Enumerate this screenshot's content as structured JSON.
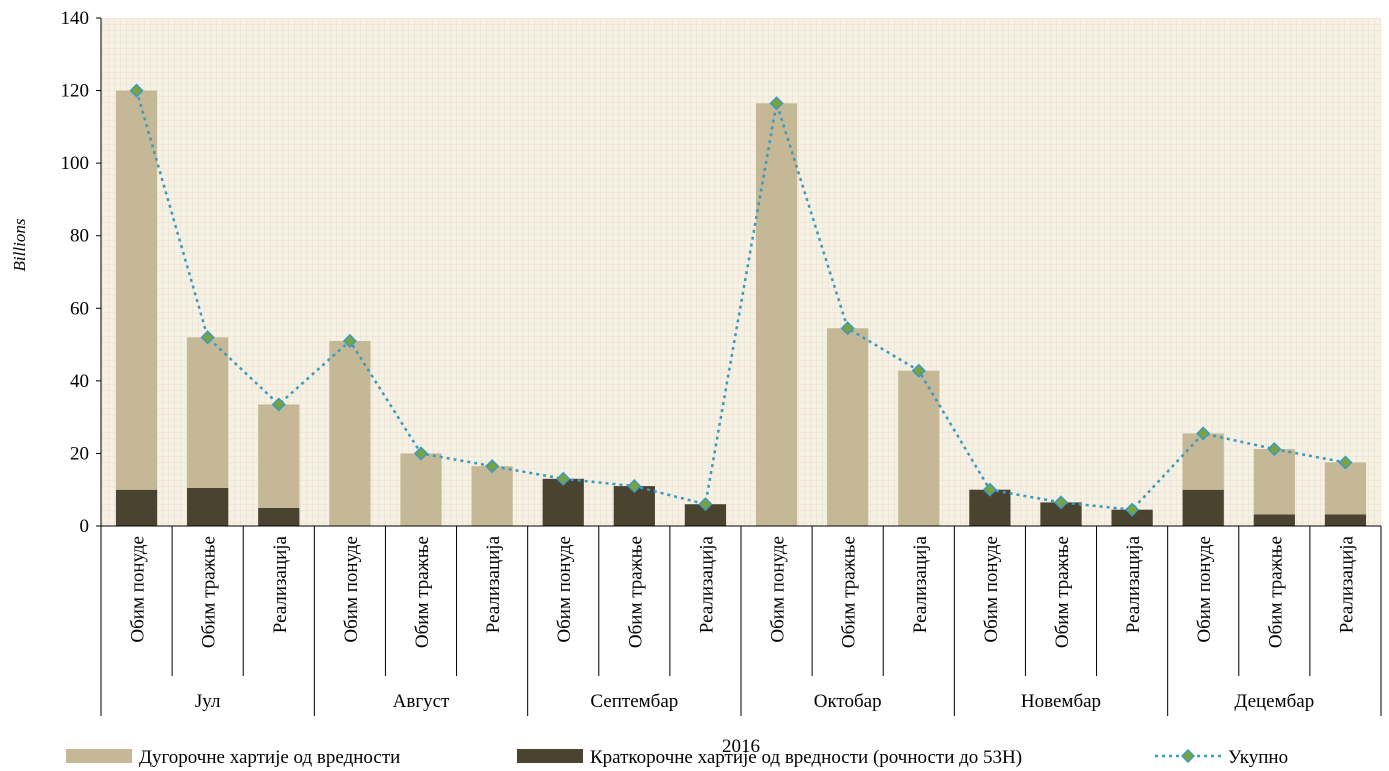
{
  "chart_data": {
    "type": "bar",
    "title": "",
    "ylabel": "Billions",
    "xlabel": "2016",
    "ylim": [
      0,
      140
    ],
    "yticks": [
      0,
      20,
      40,
      60,
      80,
      100,
      120,
      140
    ],
    "grid": true,
    "legend_position": "bottom",
    "groups": [
      "Јул",
      "Август",
      "Септембар",
      "Октобар",
      "Новембар",
      "Децембар"
    ],
    "sub_categories": [
      "Обим понуде",
      "Обим тражње",
      "Реализација"
    ],
    "stacked": true,
    "series": [
      {
        "name": "Краткорочне хартије од вредности (рочности до 53Н)",
        "kind": "bar",
        "color": "#4a4330",
        "values": [
          10,
          10.5,
          5,
          0,
          0,
          0,
          13,
          11,
          6,
          0,
          0,
          0,
          10,
          6.5,
          4.5,
          10,
          3.2,
          3.2
        ]
      },
      {
        "name": "Дугорочне хартије од вредности",
        "kind": "bar",
        "color": "#c4b897",
        "values": [
          110,
          41.5,
          28.5,
          51,
          20,
          16.5,
          0,
          0,
          0,
          116.5,
          54.5,
          42.8,
          0,
          0,
          0,
          15.5,
          18,
          14.3
        ]
      },
      {
        "name": "Укупно",
        "kind": "line",
        "color": "#3a9ac0",
        "marker_color": "#7aa33a",
        "values": [
          120,
          52,
          33.5,
          51,
          20,
          16.5,
          13,
          11,
          6,
          116.5,
          54.5,
          42.8,
          10,
          6.5,
          4.5,
          25.5,
          21.2,
          17.5
        ]
      }
    ],
    "legend": [
      "Дугорочне хартије од вредности",
      "Краткорочне хартије од вредности (рочности до 53Н)",
      "Укупно"
    ]
  }
}
